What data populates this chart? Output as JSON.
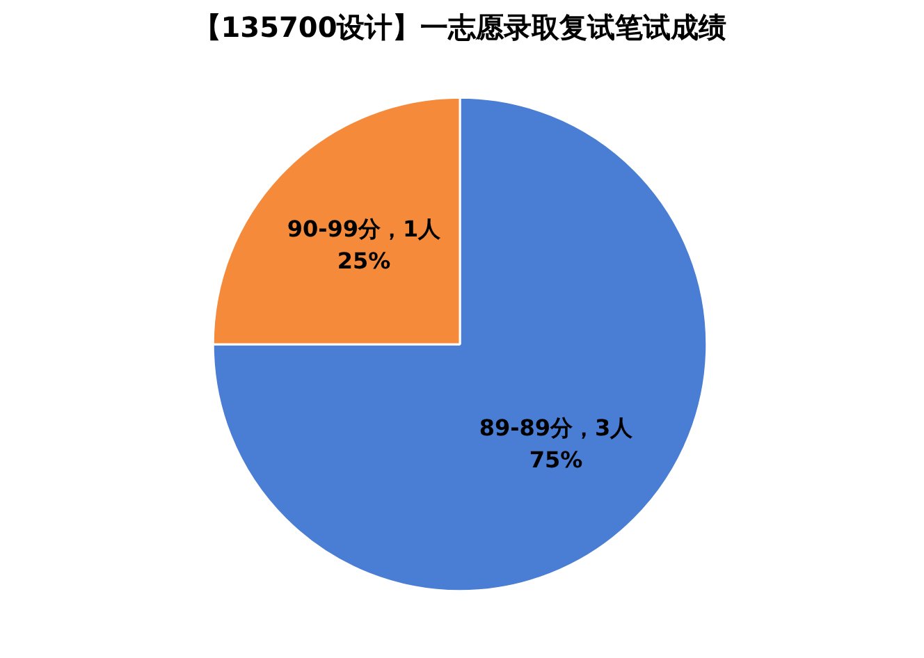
{
  "chart_data": {
    "type": "pie",
    "title": "【135700设计】一志愿录取复试笔试成绩",
    "categories": [
      "89-89分，3人",
      "90-99分，1人"
    ],
    "values": [
      75,
      25
    ],
    "value_labels": [
      "75%",
      "25%"
    ],
    "colors": [
      "#4a7dd4",
      "#f58a3a"
    ]
  }
}
